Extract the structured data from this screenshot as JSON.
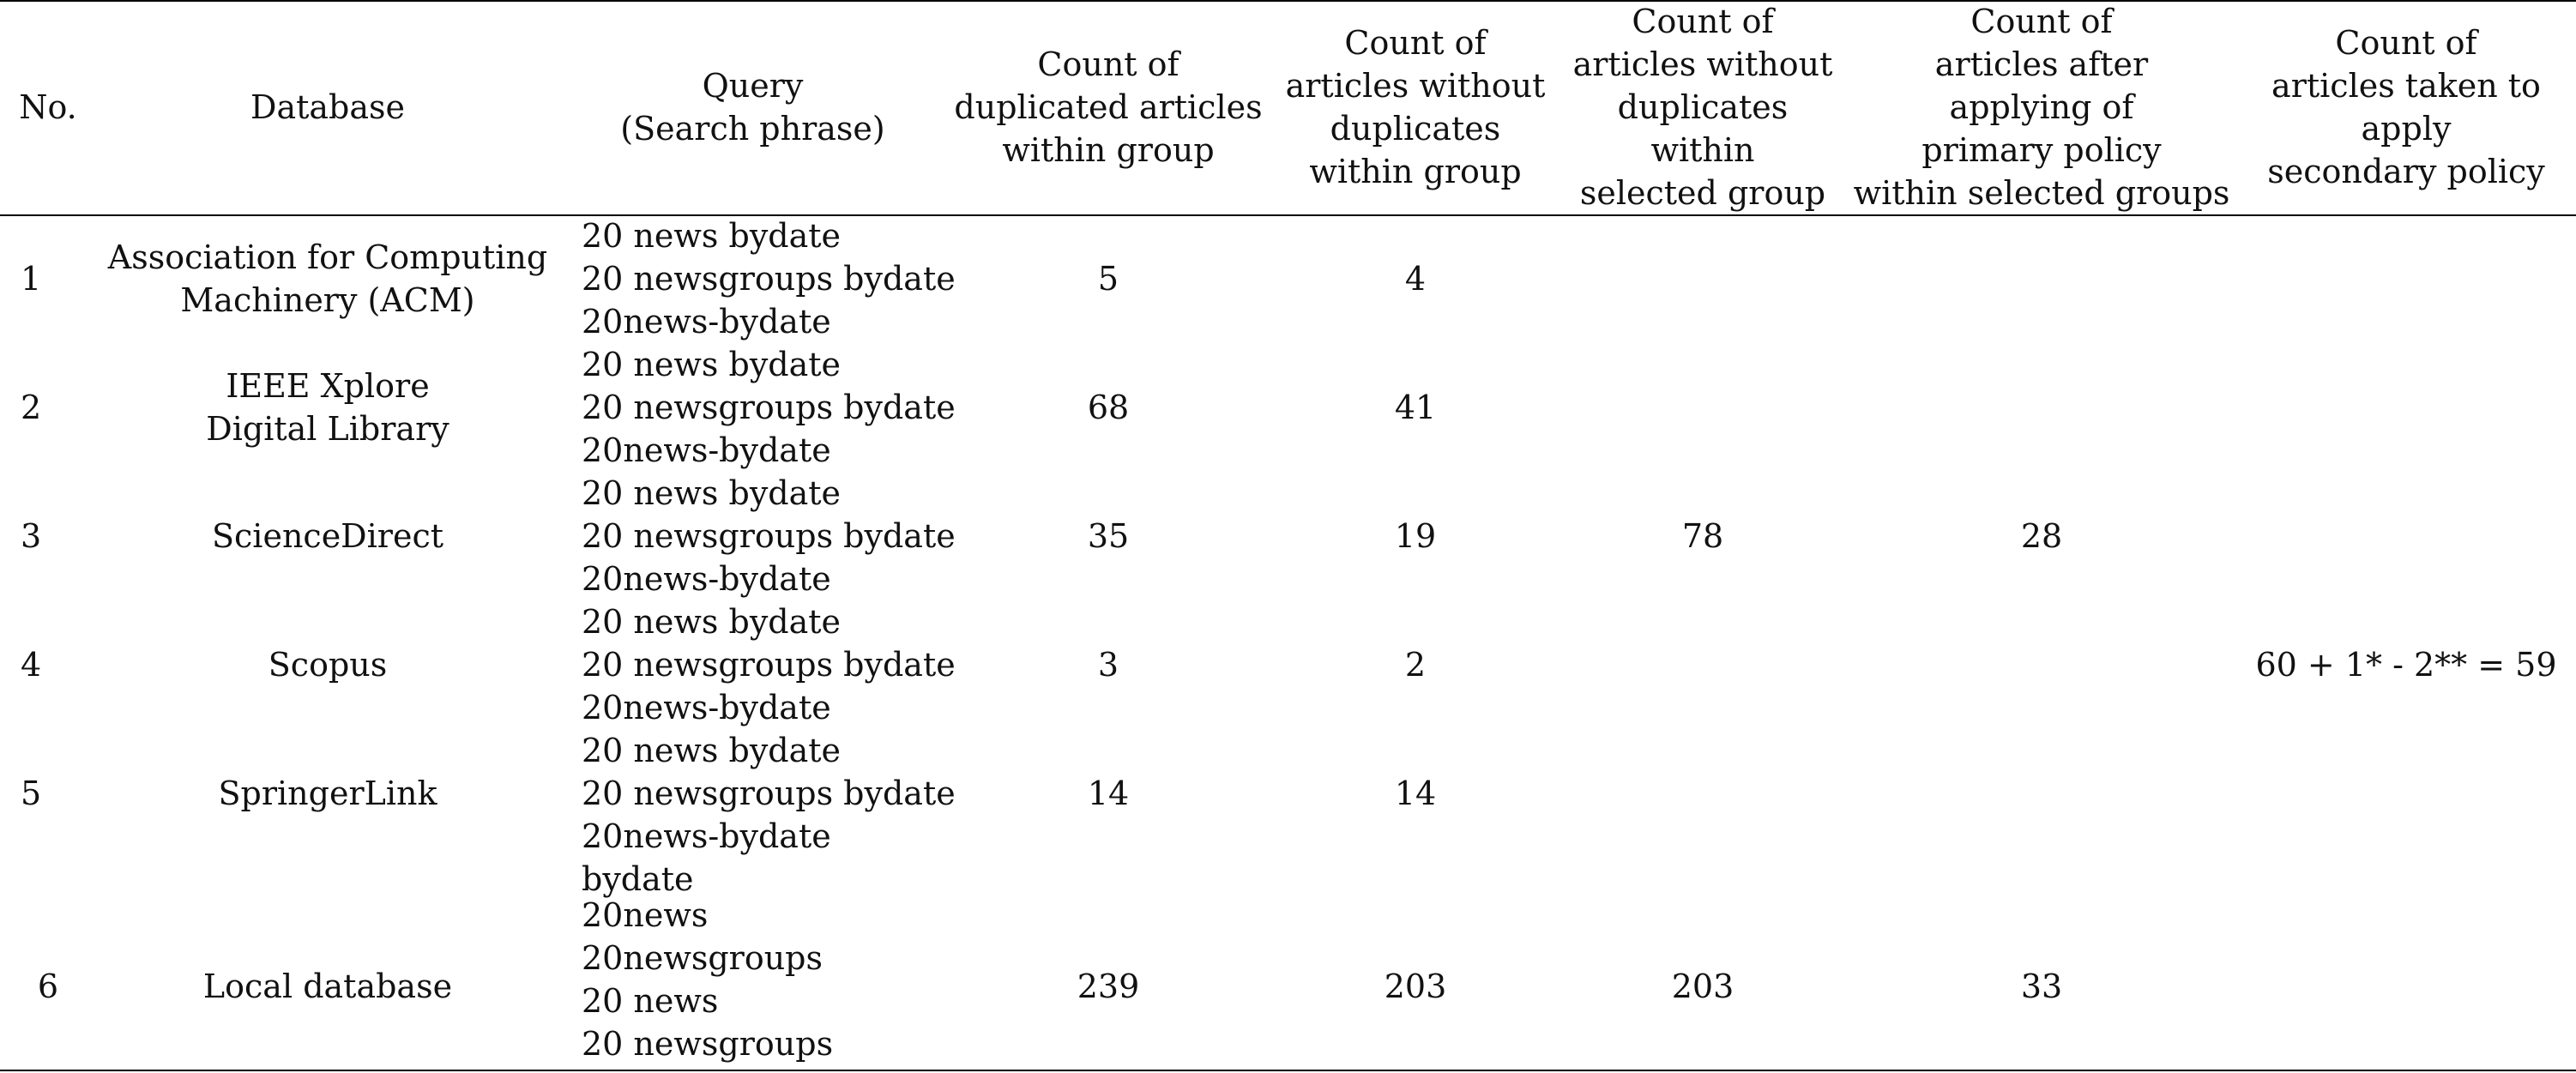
{
  "table": {
    "headers": {
      "no": "No.",
      "database": "Database",
      "query": [
        "Query",
        "(Search phrase)"
      ],
      "dup_within_group": [
        "Count of",
        "duplicated articles",
        "within group"
      ],
      "without_dup_within_group": [
        "Count of",
        "articles without",
        "duplicates",
        "within group"
      ],
      "without_dup_selected_group": [
        "Count of",
        "articles without",
        "duplicates",
        "within",
        "selected group"
      ],
      "after_primary_policy": [
        "Count of",
        "articles after",
        "applying of",
        "primary policy",
        "within selected groups"
      ],
      "taken_secondary_policy": [
        "Count of",
        "articles taken to",
        "apply",
        "secondary policy"
      ]
    },
    "rows": [
      {
        "no": "1",
        "database": [
          "Association for Computing",
          "Machinery (ACM)"
        ],
        "query": [
          "20 news bydate",
          "20 newsgroups bydate",
          "20news-bydate"
        ],
        "dup": "5",
        "nodup": "4"
      },
      {
        "no": "2",
        "database": [
          "IEEE Xplore",
          "Digital Library"
        ],
        "query": [
          "20 news bydate",
          "20 newsgroups bydate",
          "20news-bydate"
        ],
        "dup": "68",
        "nodup": "41"
      },
      {
        "no": "3",
        "database": [
          "ScienceDirect"
        ],
        "query": [
          "20 news bydate",
          "20 newsgroups bydate",
          "20news-bydate"
        ],
        "dup": "35",
        "nodup": "19"
      },
      {
        "no": "4",
        "database": [
          "Scopus"
        ],
        "query": [
          "20 news bydate",
          "20 newsgroups bydate",
          "20news-bydate"
        ],
        "dup": "3",
        "nodup": "2"
      },
      {
        "no": "5",
        "database": [
          "SpringerLink"
        ],
        "query": [
          "20 news bydate",
          "20 newsgroups bydate",
          "20news-bydate",
          "bydate"
        ],
        "dup": "14",
        "nodup": "14"
      },
      {
        "no": "6",
        "database": [
          "Local database"
        ],
        "query": [
          "20news",
          "20newsgroups",
          "20 news",
          "20 newsgroups"
        ],
        "dup": "239",
        "nodup": "203"
      }
    ],
    "merged": {
      "group1_selected": "78",
      "group1_primary": "28",
      "local_selected": "203",
      "local_primary": "33",
      "secondary_total": "60 + 1* - 2** = 59"
    }
  }
}
